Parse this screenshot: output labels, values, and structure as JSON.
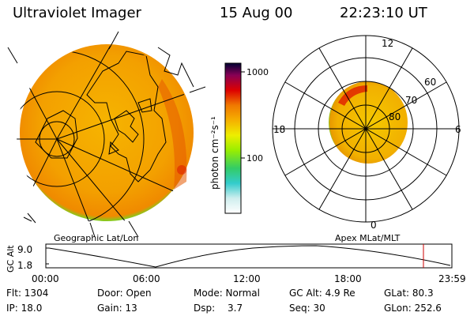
{
  "header": {
    "title": "Ultraviolet Imager",
    "date": "15 Aug 00",
    "time": "22:23:10 UT"
  },
  "colorbar": {
    "unit_label": "photon cm⁻²s⁻¹",
    "ticks": [
      "1000",
      "100"
    ]
  },
  "map_labels": {
    "left": "Geographic Lat/Lon",
    "right": "Apex MLat/MLT"
  },
  "polar_plot": {
    "mlt_labels": [
      "12",
      "18",
      "6",
      "0"
    ],
    "lat_labels": [
      "60",
      "70",
      "80"
    ]
  },
  "altitude_plot": {
    "ylabel": "GC Alt",
    "y_ticks": [
      "9.0",
      "1.8"
    ],
    "x_ticks": [
      "00:00",
      "06:00",
      "12:00",
      "18:00",
      "23:59"
    ]
  },
  "footer": {
    "flt": "Flt: 1304",
    "ip": "IP: 18.0",
    "door": "Door: Open",
    "gain": "Gain: 13",
    "mode": "Mode: Normal",
    "dsp_label": "Dsp:",
    "dsp_value": "3.7",
    "gc_alt": "GC Alt: 4.9 Re",
    "seq": "Seq: 30",
    "glat": "GLat: 80.3",
    "glon": "GLon: 252.6"
  }
}
